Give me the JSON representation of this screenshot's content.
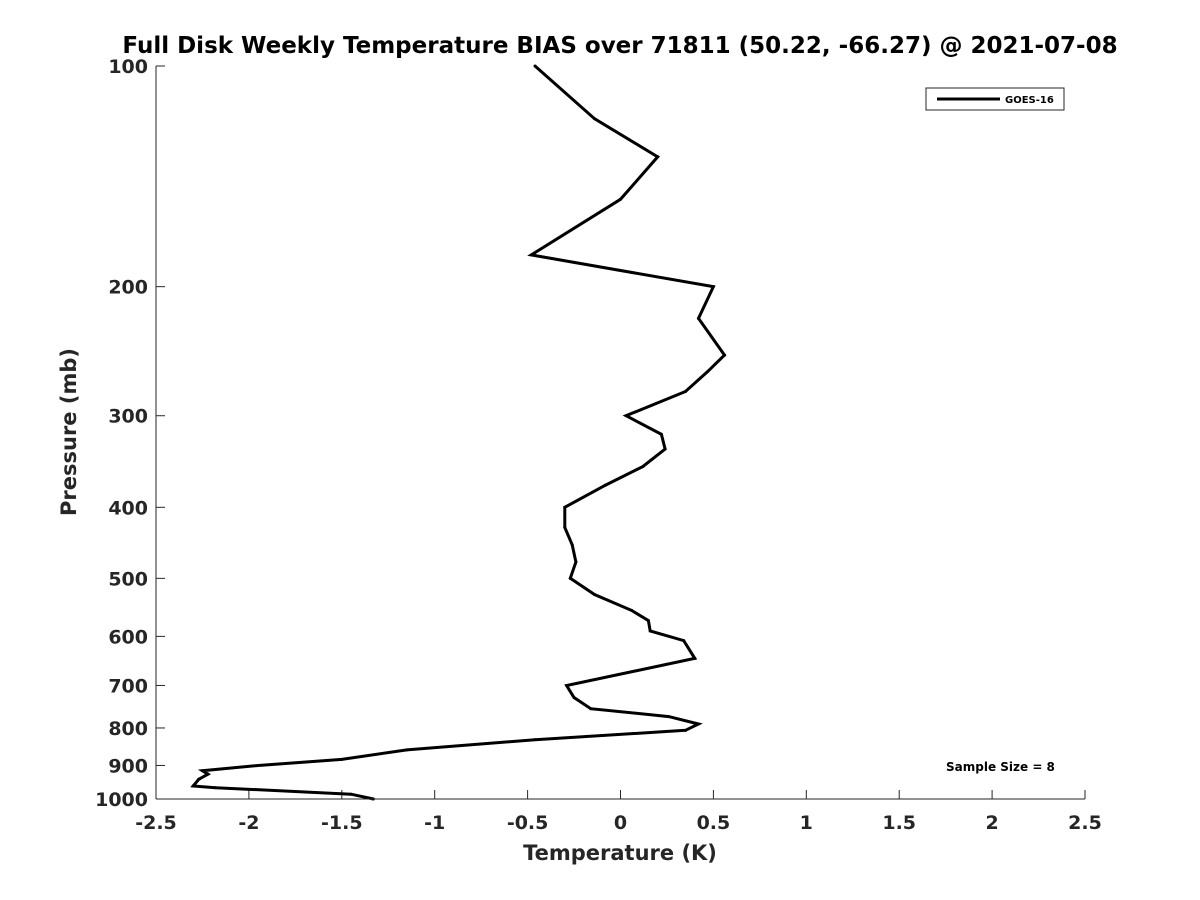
{
  "chart_data": {
    "type": "line",
    "title": "Full Disk Weekly Temperature BIAS over 71811 (50.22, -66.27) @ 2021-07-08",
    "xlabel": "Temperature (K)",
    "ylabel": "Pressure (mb)",
    "xlim": [
      -2.5,
      2.5
    ],
    "ylim": [
      100,
      1000
    ],
    "y_scale": "log",
    "y_reversed": true,
    "x_ticks": [
      "-2.5",
      "-2",
      "-1.5",
      "-1",
      "-0.5",
      "0",
      "0.5",
      "1",
      "1.5",
      "2",
      "2.5"
    ],
    "y_ticks": [
      "100",
      "200",
      "300",
      "400",
      "500",
      "600",
      "700",
      "800",
      "900",
      "1000"
    ],
    "grid": false,
    "legend_position": "top-right",
    "annotation": "Sample Size = 8",
    "series": [
      {
        "name": "GOES-16",
        "color": "#000000",
        "points": [
          {
            "x": -0.46,
            "y": 100
          },
          {
            "x": -0.14,
            "y": 118
          },
          {
            "x": 0.2,
            "y": 133
          },
          {
            "x": 0.0,
            "y": 152
          },
          {
            "x": -0.48,
            "y": 181
          },
          {
            "x": 0.5,
            "y": 200
          },
          {
            "x": 0.42,
            "y": 221
          },
          {
            "x": 0.56,
            "y": 248
          },
          {
            "x": 0.47,
            "y": 261
          },
          {
            "x": 0.35,
            "y": 278
          },
          {
            "x": 0.03,
            "y": 300
          },
          {
            "x": 0.22,
            "y": 318
          },
          {
            "x": 0.24,
            "y": 333
          },
          {
            "x": 0.12,
            "y": 352
          },
          {
            "x": -0.08,
            "y": 373
          },
          {
            "x": -0.3,
            "y": 400
          },
          {
            "x": -0.3,
            "y": 426
          },
          {
            "x": -0.26,
            "y": 450
          },
          {
            "x": -0.24,
            "y": 475
          },
          {
            "x": -0.27,
            "y": 500
          },
          {
            "x": -0.14,
            "y": 526
          },
          {
            "x": 0.06,
            "y": 553
          },
          {
            "x": 0.15,
            "y": 571
          },
          {
            "x": 0.16,
            "y": 590
          },
          {
            "x": 0.34,
            "y": 608
          },
          {
            "x": 0.4,
            "y": 643
          },
          {
            "x": -0.29,
            "y": 700
          },
          {
            "x": -0.25,
            "y": 727
          },
          {
            "x": -0.16,
            "y": 753
          },
          {
            "x": 0.26,
            "y": 772
          },
          {
            "x": 0.42,
            "y": 790
          },
          {
            "x": 0.35,
            "y": 806
          },
          {
            "x": -0.46,
            "y": 830
          },
          {
            "x": -1.15,
            "y": 857
          },
          {
            "x": -1.5,
            "y": 883
          },
          {
            "x": -1.95,
            "y": 900
          },
          {
            "x": -2.25,
            "y": 915
          },
          {
            "x": -2.22,
            "y": 925
          },
          {
            "x": -2.27,
            "y": 940
          },
          {
            "x": -2.3,
            "y": 960
          },
          {
            "x": -2.18,
            "y": 965
          },
          {
            "x": -1.45,
            "y": 985
          },
          {
            "x": -1.33,
            "y": 1000
          }
        ]
      }
    ]
  }
}
